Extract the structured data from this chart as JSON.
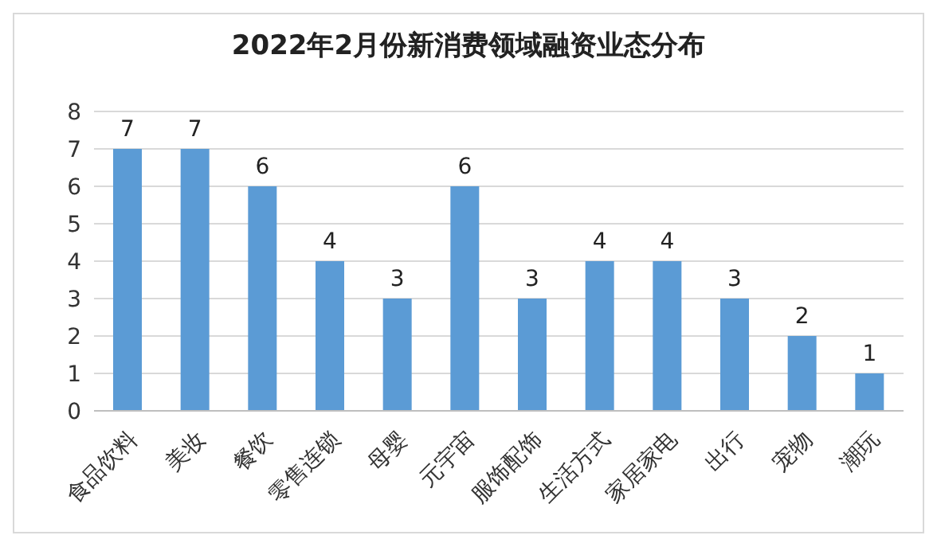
{
  "chart_data": {
    "type": "bar",
    "title": "2022年2月份新消费领域融资业态分布",
    "categories": [
      "食品饮料",
      "美妆",
      "餐饮",
      "零售连锁",
      "母婴",
      "元宇宙",
      "服饰配饰",
      "生活方式",
      "家居家电",
      "出行",
      "宠物",
      "潮玩"
    ],
    "values": [
      7,
      7,
      6,
      4,
      3,
      6,
      3,
      4,
      4,
      3,
      2,
      1
    ],
    "color": "#5b9bd5",
    "ylim": [
      0,
      8
    ],
    "yticks": [
      0,
      1,
      2,
      3,
      4,
      5,
      6,
      7,
      8
    ],
    "grid": "y",
    "data_labels": true
  }
}
